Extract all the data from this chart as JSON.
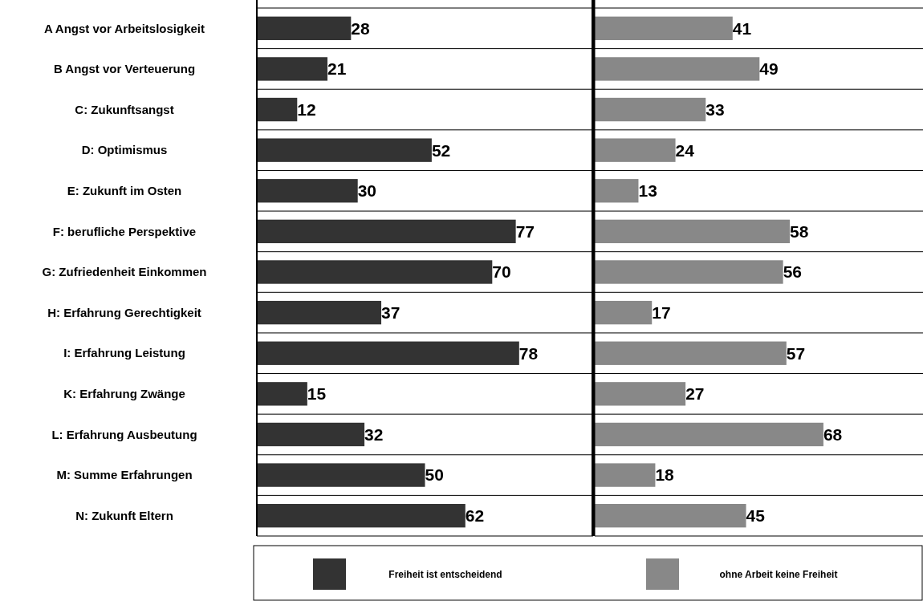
{
  "chart_data": [
    {
      "type": "bar",
      "orientation": "horizontal",
      "categories": [
        "A Angst vor Arbeitslosigkeit",
        "B Angst vor Verteuerung",
        "C: Zukunftsangst",
        "D: Optimismus",
        "E: Zukunft im Osten",
        "F: berufliche Perspektive",
        "G: Zufriedenheit Einkommen",
        "H: Erfahrung Gerechtigkeit",
        "I: Erfahrung Leistung",
        "K: Erfahrung Zwänge",
        "L: Erfahrung Ausbeutung",
        "M: Summe Erfahrungen",
        "N: Zukunft Eltern"
      ],
      "series": [
        {
          "name": "Freiheit ist entscheidend",
          "color": "#333333",
          "values": [
            28,
            21,
            12,
            52,
            30,
            77,
            70,
            37,
            78,
            15,
            32,
            50,
            62
          ]
        }
      ],
      "data_labels": true,
      "grid": "y",
      "legend": "bottom",
      "tick_labels": "y"
    },
    {
      "type": "bar",
      "orientation": "horizontal",
      "categories": [
        null,
        null,
        null,
        null,
        null,
        null,
        null,
        null,
        null,
        null,
        null,
        null,
        null
      ],
      "series": [
        {
          "name": "ohne Arbeit keine Freiheit",
          "color": "#888888",
          "values": [
            41,
            49,
            33,
            24,
            13,
            58,
            56,
            17,
            57,
            27,
            68,
            18,
            45
          ]
        }
      ],
      "data_labels": true,
      "grid": "y",
      "legend": "bottom",
      "tick_labels": false
    }
  ]
}
